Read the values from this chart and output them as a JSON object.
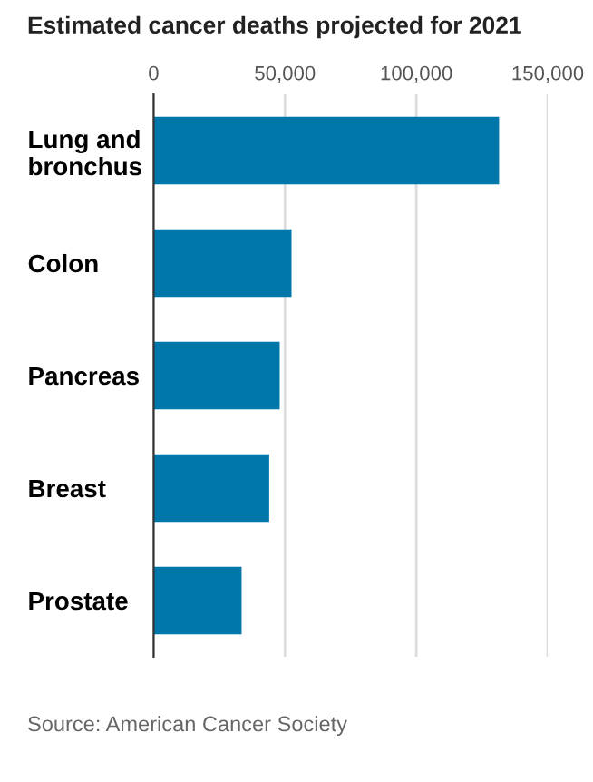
{
  "chart_data": {
    "type": "bar",
    "orientation": "horizontal",
    "title": "Estimated cancer deaths projected for 2021",
    "categories": [
      "Lung and\nbronchus",
      "Colon",
      "Pancreas",
      "Breast",
      "Prostate"
    ],
    "values": [
      131500,
      52500,
      48000,
      44000,
      33500
    ],
    "color": "#0077aa",
    "xlim": [
      0,
      150000
    ],
    "xticks": [
      {
        "value": 0,
        "label": "0"
      },
      {
        "value": 50000,
        "label": "50,000"
      },
      {
        "value": 100000,
        "label": "100,000"
      },
      {
        "value": 150000,
        "label": "150,000"
      }
    ],
    "grid": "x",
    "annotations": [
      "Source: American Cancer Society"
    ]
  }
}
